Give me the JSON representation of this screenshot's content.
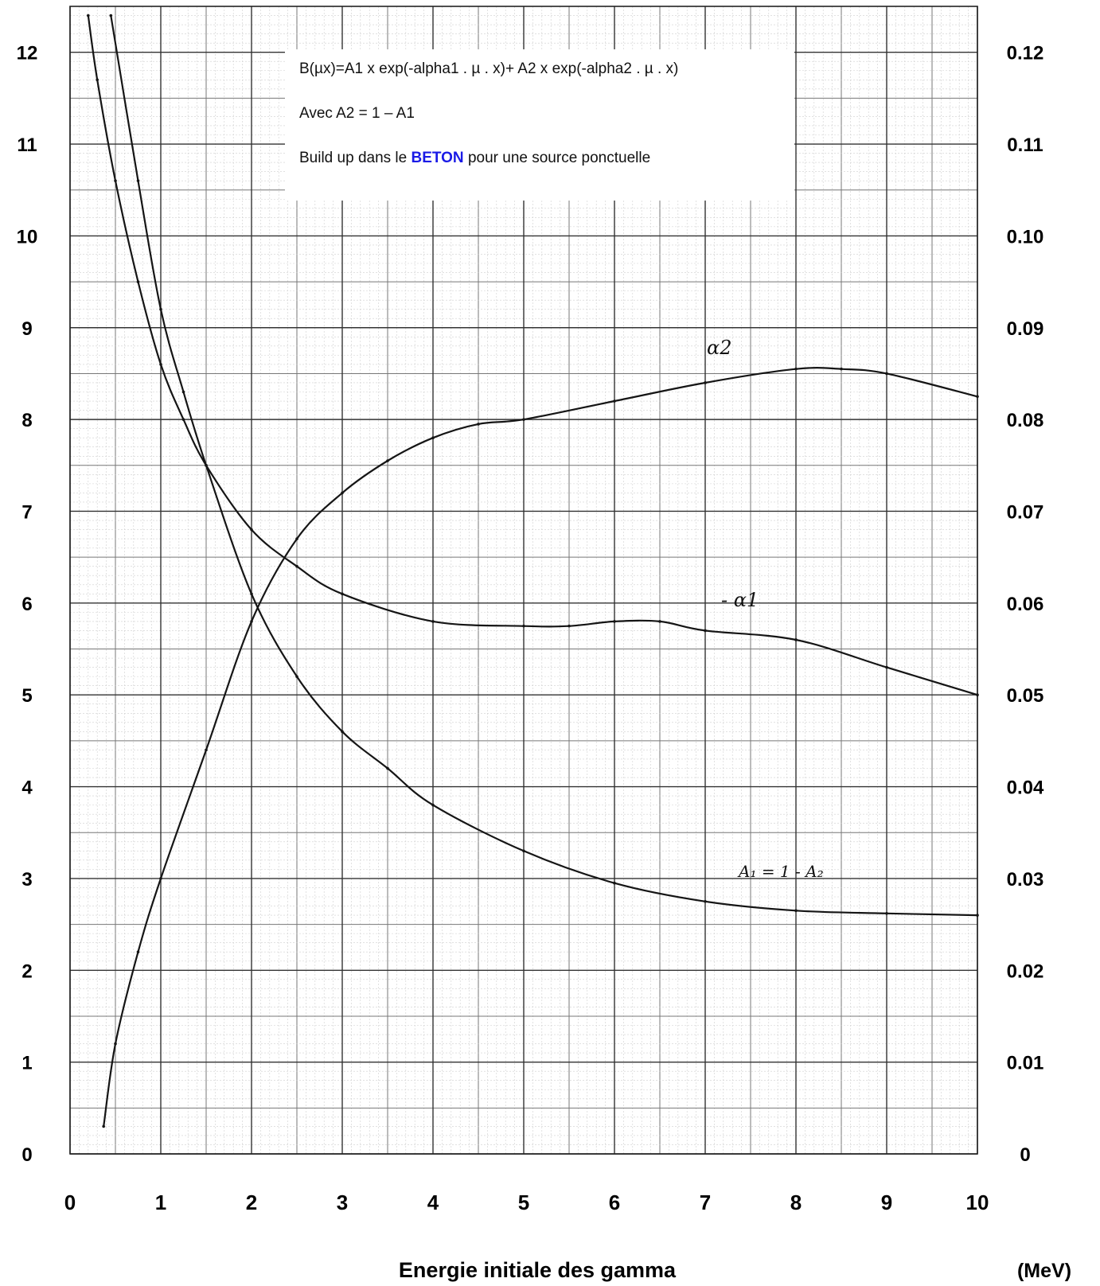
{
  "chart_data": {
    "type": "line",
    "xlabel": "Energie initiale des gamma",
    "x_unit": "(MeV)",
    "xlim": [
      0,
      10
    ],
    "x_ticks": [
      "0",
      "1",
      "2",
      "3",
      "4",
      "5",
      "6",
      "7",
      "8",
      "9",
      "10"
    ],
    "left_axis": {
      "ylim": [
        0,
        12.5
      ],
      "ticks": [
        "0",
        "1",
        "2",
        "3",
        "4",
        "5",
        "6",
        "7",
        "8",
        "9",
        "10",
        "11",
        "12"
      ]
    },
    "right_axis": {
      "ylim": [
        0,
        0.125
      ],
      "ticks": [
        "0",
        "0.01",
        "0.02",
        "0.03",
        "0.04",
        "0.05",
        "0.06",
        "0.07",
        "0.08",
        "0.09",
        "0.10",
        "0.11",
        "0.12"
      ]
    },
    "grid": true,
    "annotation": {
      "formula": "B(µx)=A1 x exp(-alpha1 . µ . x)+ A2 x exp(-alpha2 . µ . x)",
      "relation": "Avec A2 = 1 – A1",
      "caption_before": "Build up dans le ",
      "caption_emph": "BETON",
      "caption_after": " pour une source ponctuelle",
      "emph_color": "#1a1ae6"
    },
    "series": [
      {
        "name": "α2",
        "axis": "right",
        "x": [
          0.37,
          0.5,
          0.75,
          1,
          1.5,
          2,
          2.5,
          3,
          3.5,
          4,
          4.5,
          5,
          6,
          7,
          8,
          8.5,
          9,
          10
        ],
        "values": [
          0.003,
          0.012,
          0.022,
          0.03,
          0.044,
          0.058,
          0.067,
          0.072,
          0.0755,
          0.078,
          0.0795,
          0.08,
          0.082,
          0.084,
          0.0855,
          0.0855,
          0.085,
          0.0825
        ]
      },
      {
        "name": "- α1",
        "axis": "right",
        "x": [
          0.2,
          0.3,
          0.5,
          0.75,
          1,
          1.25,
          1.5,
          2,
          2.5,
          3,
          4,
          5,
          5.5,
          6,
          6.5,
          7,
          8,
          9,
          10
        ],
        "values": [
          0.124,
          0.117,
          0.106,
          0.095,
          0.086,
          0.08,
          0.075,
          0.068,
          0.064,
          0.061,
          0.058,
          0.0575,
          0.0575,
          0.058,
          0.058,
          0.057,
          0.056,
          0.053,
          0.05
        ]
      },
      {
        "name": "A₁ = 1 - A₂",
        "axis": "left",
        "x": [
          0.45,
          0.75,
          1,
          1.25,
          1.5,
          2,
          2.5,
          3,
          3.5,
          4,
          5,
          6,
          7,
          8,
          9,
          10
        ],
        "values": [
          12.4,
          10.6,
          9.2,
          8.3,
          7.5,
          6.1,
          5.2,
          4.6,
          4.2,
          3.8,
          3.3,
          2.95,
          2.75,
          2.65,
          2.62,
          2.6
        ]
      }
    ]
  }
}
